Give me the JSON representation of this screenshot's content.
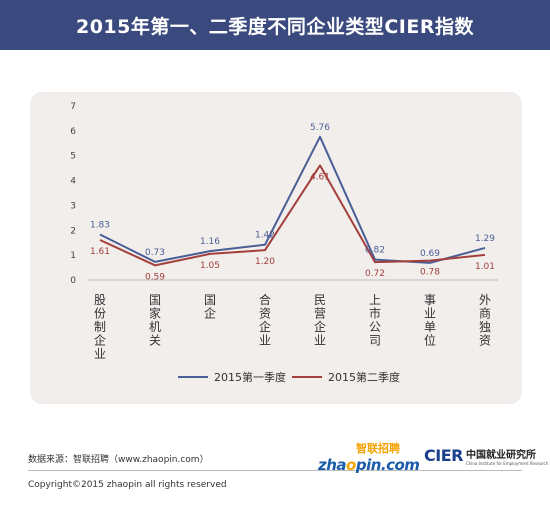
{
  "header": {
    "title": "2015年第一、二季度不同企业类型CIER指数"
  },
  "chart_data": {
    "type": "line",
    "title": "2015年第一、二季度不同企业类型CIER指数",
    "categories": [
      "股份制企业",
      "国家机关",
      "国企",
      "合资企业",
      "民营企业",
      "上市公司",
      "事业单位",
      "外商独资"
    ],
    "ylim": [
      0,
      7
    ],
    "yticks": [
      "0",
      "1",
      "2",
      "3",
      "4",
      "5",
      "6",
      "7"
    ],
    "grid": false,
    "legend_position": "bottom",
    "series": [
      {
        "name": "2015第一季度",
        "color": "#4a5f96",
        "values": [
          1.83,
          0.73,
          1.16,
          1.42,
          5.76,
          0.82,
          0.69,
          1.29
        ],
        "labels": [
          "1.83",
          "0.73",
          "1.16",
          "1.42",
          "5.76",
          "0.82",
          "0.69",
          "1.29"
        ]
      },
      {
        "name": "2015第二季度",
        "color": "#a33f3c",
        "values": [
          1.61,
          0.59,
          1.05,
          1.2,
          4.61,
          0.72,
          0.78,
          1.01
        ],
        "labels": [
          "1.61",
          "0.59",
          "1.05",
          "1.20",
          "4.61",
          "0.72",
          "0.78",
          "1.01"
        ]
      }
    ]
  },
  "footer": {
    "source": "数据来源：智联招聘（www.zhaopin.com）",
    "copyright": "Copyright©2015 zhaopin all rights reserved",
    "logo_zhaopin_top": "智联招聘",
    "logo_zhaopin_bottom_a": "zha",
    "logo_zhaopin_bottom_o": "o",
    "logo_zhaopin_bottom_b": "pin.com",
    "logo_cier_mark": "CIER",
    "logo_cier_cn": "中国就业研究所",
    "logo_cier_en": "China Institute for Employment Research"
  }
}
